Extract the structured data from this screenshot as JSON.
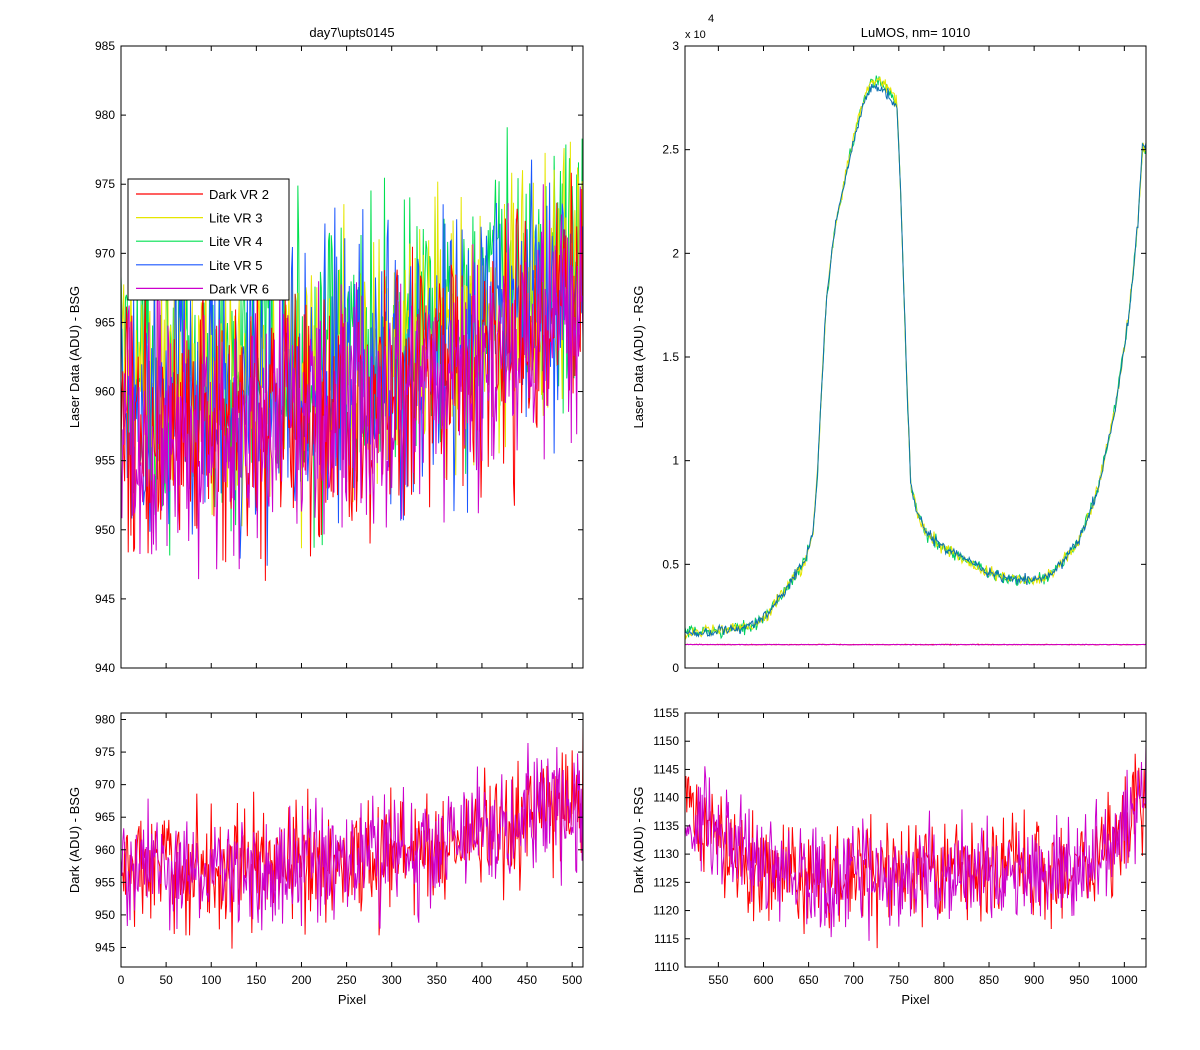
{
  "chart_data": [
    {
      "id": "tl",
      "type": "line",
      "title": "day7\\upts0145",
      "xlabel": "",
      "ylabel": "Laser Data (ADU) - BSG",
      "xlim": [
        0,
        512
      ],
      "ylim": [
        940,
        985
      ],
      "xticks": [
        0,
        50,
        100,
        150,
        200,
        250,
        300,
        350,
        400,
        450,
        500
      ],
      "xticklabels": [],
      "yticks": [
        940,
        945,
        950,
        955,
        960,
        965,
        970,
        975,
        980,
        985
      ],
      "yticklabels": [
        "940",
        "945",
        "950",
        "955",
        "960",
        "965",
        "970",
        "975",
        "980",
        "985"
      ],
      "legend": {
        "position": "upper-left",
        "entries": [
          {
            "label": "Dark VR 2",
            "color": "#ff0000"
          },
          {
            "label": "Lite VR 3",
            "color": "#e6e600"
          },
          {
            "label": "Lite VR 4",
            "color": "#00e050"
          },
          {
            "label": "Lite VR 5",
            "color": "#1a56ff"
          },
          {
            "label": "Dark VR 6",
            "color": "#cc00cc"
          }
        ]
      },
      "series": [
        {
          "color": "#00e050",
          "noise": 5.0,
          "points": [
            [
              0,
              962
            ],
            [
              100,
              961
            ],
            [
              200,
              962
            ],
            [
              300,
              963
            ],
            [
              400,
              966
            ],
            [
              512,
              970
            ]
          ]
        },
        {
          "color": "#e6e600",
          "noise": 5.0,
          "points": [
            [
              0,
              961
            ],
            [
              100,
              960
            ],
            [
              200,
              961
            ],
            [
              300,
              962
            ],
            [
              400,
              965
            ],
            [
              512,
              969
            ]
          ]
        },
        {
          "color": "#1a56ff",
          "noise": 4.8,
          "points": [
            [
              0,
              960
            ],
            [
              100,
              959
            ],
            [
              200,
              960
            ],
            [
              300,
              961
            ],
            [
              400,
              964
            ],
            [
              512,
              968
            ]
          ]
        },
        {
          "color": "#ff0000",
          "noise": 4.5,
          "points": [
            [
              0,
              957
            ],
            [
              100,
              957
            ],
            [
              200,
              958
            ],
            [
              300,
              959
            ],
            [
              400,
              962
            ],
            [
              512,
              967
            ]
          ]
        },
        {
          "color": "#cc00cc",
          "noise": 4.5,
          "points": [
            [
              0,
              957
            ],
            [
              100,
              957
            ],
            [
              200,
              958
            ],
            [
              300,
              959
            ],
            [
              400,
              962
            ],
            [
              512,
              967
            ]
          ]
        }
      ]
    },
    {
      "id": "tr",
      "type": "line",
      "title": "LuMOS, nm= 1010",
      "xlabel": "",
      "ylabel": "Laser Data (ADU) - RSG",
      "xlim": [
        513,
        1024
      ],
      "ylim": [
        0,
        30000
      ],
      "scale_note": "x 10",
      "scale_exp": "4",
      "xticks": [
        550,
        600,
        650,
        700,
        750,
        800,
        850,
        900,
        950,
        1000
      ],
      "xticklabels": [],
      "yticks": [
        0,
        5000,
        10000,
        15000,
        20000,
        25000,
        30000
      ],
      "yticklabels": [
        "0",
        "0.5",
        "1",
        "1.5",
        "2",
        "2.5",
        "3"
      ],
      "series": [
        {
          "color": "#00d060",
          "noise": 150,
          "points": [
            [
              513,
              1700
            ],
            [
              540,
              1750
            ],
            [
              570,
              1900
            ],
            [
              590,
              2100
            ],
            [
              605,
              2600
            ],
            [
              620,
              3500
            ],
            [
              635,
              4500
            ],
            [
              645,
              5000
            ],
            [
              655,
              6500
            ],
            [
              660,
              9500
            ],
            [
              665,
              14000
            ],
            [
              670,
              18000
            ],
            [
              680,
              21500
            ],
            [
              690,
              23500
            ],
            [
              700,
              25500
            ],
            [
              710,
              27200
            ],
            [
              720,
              28300
            ],
            [
              730,
              28200
            ],
            [
              740,
              27800
            ],
            [
              748,
              27200
            ],
            [
              752,
              23000
            ],
            [
              758,
              15000
            ],
            [
              763,
              9000
            ],
            [
              770,
              7500
            ],
            [
              780,
              6500
            ],
            [
              800,
              5800
            ],
            [
              820,
              5300
            ],
            [
              840,
              4800
            ],
            [
              860,
              4400
            ],
            [
              880,
              4300
            ],
            [
              900,
              4250
            ],
            [
              915,
              4400
            ],
            [
              930,
              5000
            ],
            [
              950,
              6200
            ],
            [
              970,
              8500
            ],
            [
              990,
              12500
            ],
            [
              1005,
              17000
            ],
            [
              1015,
              21500
            ],
            [
              1020,
              25000
            ]
          ]
        },
        {
          "color": "#e6e600",
          "noise": 150,
          "points": [
            [
              513,
              1700
            ],
            [
              540,
              1750
            ],
            [
              570,
              1900
            ],
            [
              590,
              2100
            ],
            [
              605,
              2600
            ],
            [
              620,
              3500
            ],
            [
              635,
              4500
            ],
            [
              645,
              5000
            ],
            [
              655,
              6500
            ],
            [
              660,
              9500
            ],
            [
              665,
              14000
            ],
            [
              670,
              18000
            ],
            [
              680,
              21500
            ],
            [
              690,
              23500
            ],
            [
              700,
              25600
            ],
            [
              710,
              27300
            ],
            [
              720,
              28400
            ],
            [
              730,
              28300
            ],
            [
              740,
              27900
            ],
            [
              748,
              27300
            ],
            [
              752,
              23000
            ],
            [
              758,
              15000
            ],
            [
              763,
              9000
            ],
            [
              770,
              7500
            ],
            [
              780,
              6500
            ],
            [
              800,
              5800
            ],
            [
              820,
              5300
            ],
            [
              840,
              4800
            ],
            [
              860,
              4400
            ],
            [
              880,
              4300
            ],
            [
              900,
              4250
            ],
            [
              915,
              4400
            ],
            [
              930,
              5000
            ],
            [
              950,
              6200
            ],
            [
              970,
              8500
            ],
            [
              990,
              12500
            ],
            [
              1005,
              17000
            ],
            [
              1015,
              21500
            ],
            [
              1020,
              25000
            ]
          ]
        },
        {
          "color": "#0a6fb0",
          "noise": 120,
          "points": [
            [
              513,
              1700
            ],
            [
              540,
              1750
            ],
            [
              570,
              1900
            ],
            [
              590,
              2100
            ],
            [
              605,
              2600
            ],
            [
              620,
              3500
            ],
            [
              635,
              4500
            ],
            [
              645,
              5000
            ],
            [
              655,
              6500
            ],
            [
              660,
              9500
            ],
            [
              665,
              14000
            ],
            [
              670,
              18000
            ],
            [
              680,
              21500
            ],
            [
              690,
              23500
            ],
            [
              700,
              25400
            ],
            [
              710,
              27100
            ],
            [
              720,
              28100
            ],
            [
              730,
              28000
            ],
            [
              740,
              27600
            ],
            [
              748,
              27000
            ],
            [
              752,
              23000
            ],
            [
              758,
              15000
            ],
            [
              763,
              9000
            ],
            [
              770,
              7500
            ],
            [
              780,
              6500
            ],
            [
              800,
              5800
            ],
            [
              820,
              5300
            ],
            [
              840,
              4800
            ],
            [
              860,
              4400
            ],
            [
              880,
              4300
            ],
            [
              900,
              4250
            ],
            [
              915,
              4400
            ],
            [
              930,
              5000
            ],
            [
              950,
              6200
            ],
            [
              970,
              8500
            ],
            [
              990,
              12500
            ],
            [
              1005,
              17000
            ],
            [
              1015,
              21500
            ],
            [
              1020,
              25200
            ]
          ]
        },
        {
          "color": "#ff0000",
          "noise": 8,
          "points": [
            [
              513,
              1130
            ],
            [
              1024,
              1130
            ]
          ]
        },
        {
          "color": "#cc00cc",
          "noise": 8,
          "points": [
            [
              513,
              1128
            ],
            [
              1024,
              1128
            ]
          ]
        }
      ]
    },
    {
      "id": "bl",
      "type": "line",
      "title": "",
      "xlabel": "Pixel",
      "ylabel": "Dark (ADU) - BSG",
      "xlim": [
        0,
        512
      ],
      "ylim": [
        942,
        981
      ],
      "xticks": [
        0,
        50,
        100,
        150,
        200,
        250,
        300,
        350,
        400,
        450,
        500
      ],
      "xticklabels": [
        "0",
        "50",
        "100",
        "150",
        "200",
        "250",
        "300",
        "350",
        "400",
        "450",
        "500"
      ],
      "yticks": [
        945,
        950,
        955,
        960,
        965,
        970,
        975,
        980
      ],
      "yticklabels": [
        "945",
        "950",
        "955",
        "960",
        "965",
        "970",
        "975",
        "980"
      ],
      "series": [
        {
          "color": "#ff0000",
          "noise": 4.5,
          "points": [
            [
              0,
              957
            ],
            [
              100,
              957
            ],
            [
              200,
              958
            ],
            [
              300,
              959
            ],
            [
              400,
              962
            ],
            [
              512,
              968
            ]
          ]
        },
        {
          "color": "#cc00cc",
          "noise": 4.5,
          "points": [
            [
              0,
              957
            ],
            [
              100,
              957
            ],
            [
              200,
              958
            ],
            [
              300,
              959
            ],
            [
              400,
              962
            ],
            [
              512,
              968
            ]
          ]
        }
      ]
    },
    {
      "id": "br",
      "type": "line",
      "title": "",
      "xlabel": "Pixel",
      "ylabel": "Dark (ADU) - RSG",
      "xlim": [
        513,
        1024
      ],
      "ylim": [
        1110,
        1155
      ],
      "xticks": [
        550,
        600,
        650,
        700,
        750,
        800,
        850,
        900,
        950,
        1000
      ],
      "xticklabels": [
        "550",
        "600",
        "650",
        "700",
        "750",
        "800",
        "850",
        "900",
        "950",
        "1000"
      ],
      "yticks": [
        1110,
        1115,
        1120,
        1125,
        1130,
        1135,
        1140,
        1145,
        1150,
        1155
      ],
      "yticklabels": [
        "1110",
        "1115",
        "1120",
        "1125",
        "1130",
        "1135",
        "1140",
        "1145",
        "1150",
        "1155"
      ],
      "series": [
        {
          "color": "#ff0000",
          "noise": 4.5,
          "points": [
            [
              513,
              1138
            ],
            [
              560,
              1131
            ],
            [
              620,
              1126
            ],
            [
              700,
              1126
            ],
            [
              800,
              1127
            ],
            [
              900,
              1127
            ],
            [
              960,
              1128
            ],
            [
              990,
              1133
            ],
            [
              1024,
              1140
            ]
          ]
        },
        {
          "color": "#cc00cc",
          "noise": 4.5,
          "points": [
            [
              513,
              1138
            ],
            [
              560,
              1131
            ],
            [
              620,
              1126
            ],
            [
              700,
              1126
            ],
            [
              800,
              1127
            ],
            [
              900,
              1127
            ],
            [
              960,
              1128
            ],
            [
              990,
              1133
            ],
            [
              1024,
              1140
            ]
          ]
        }
      ]
    }
  ]
}
